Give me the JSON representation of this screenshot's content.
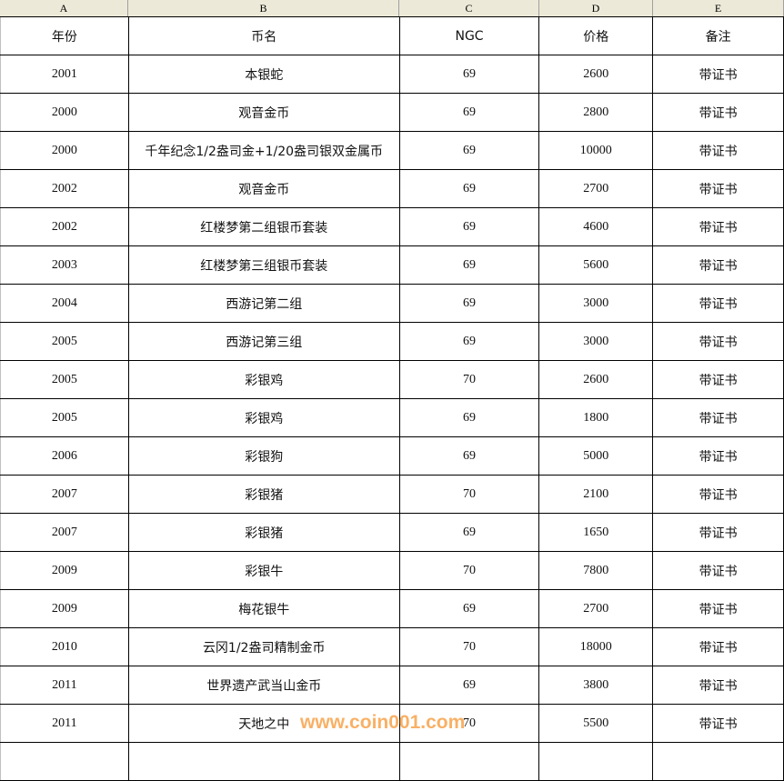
{
  "column_letters": [
    "A",
    "B",
    "C",
    "D",
    "E"
  ],
  "headers": [
    "年份",
    "币名",
    "NGC",
    "价格",
    "备注"
  ],
  "rows": [
    [
      "2001",
      "本银蛇",
      "69",
      "2600",
      "带证书"
    ],
    [
      "2000",
      "观音金币",
      "69",
      "2800",
      "带证书"
    ],
    [
      "2000",
      "千年纪念1/2盎司金+1/20盎司银双金属币",
      "69",
      "10000",
      "带证书"
    ],
    [
      "2002",
      "观音金币",
      "69",
      "2700",
      "带证书"
    ],
    [
      "2002",
      "红楼梦第二组银币套装",
      "69",
      "4600",
      "带证书"
    ],
    [
      "2003",
      "红楼梦第三组银币套装",
      "69",
      "5600",
      "带证书"
    ],
    [
      "2004",
      "西游记第二组",
      "69",
      "3000",
      "带证书"
    ],
    [
      "2005",
      "西游记第三组",
      "69",
      "3000",
      "带证书"
    ],
    [
      "2005",
      "彩银鸡",
      "70",
      "2600",
      "带证书"
    ],
    [
      "2005",
      "彩银鸡",
      "69",
      "1800",
      "带证书"
    ],
    [
      "2006",
      "彩银狗",
      "69",
      "5000",
      "带证书"
    ],
    [
      "2007",
      "彩银猪",
      "70",
      "2100",
      "带证书"
    ],
    [
      "2007",
      "彩银猪",
      "69",
      "1650",
      "带证书"
    ],
    [
      "2009",
      "彩银牛",
      "70",
      "7800",
      "带证书"
    ],
    [
      "2009",
      "梅花银牛",
      "69",
      "2700",
      "带证书"
    ],
    [
      "2010",
      "云冈1/2盎司精制金币",
      "70",
      "18000",
      "带证书"
    ],
    [
      "2011",
      "世界遗产武当山金币",
      "69",
      "3800",
      "带证书"
    ],
    [
      "2011",
      "天地之中",
      "70",
      "5500",
      "带证书"
    ]
  ],
  "watermark": "www.coin001.com"
}
